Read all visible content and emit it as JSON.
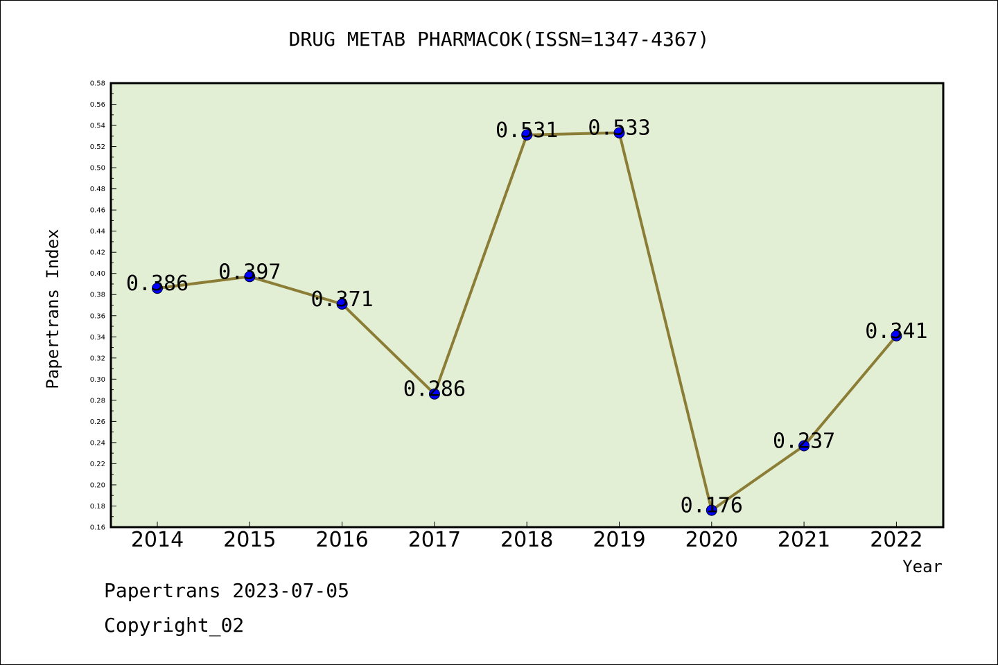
{
  "chart_data": {
    "type": "line",
    "title": "DRUG METAB PHARMACOK(ISSN=1347-4367)",
    "xlabel": "Year",
    "ylabel": "Papertrans Index",
    "categories": [
      "2014",
      "2015",
      "2016",
      "2017",
      "2018",
      "2019",
      "2020",
      "2021",
      "2022"
    ],
    "series": [
      {
        "values": [
          0.386,
          0.397,
          0.371,
          0.286,
          0.531,
          0.533,
          0.176,
          0.237,
          0.341
        ]
      }
    ],
    "data_labels": [
      "0.386",
      "0.397",
      "0.371",
      "0.286",
      "0.531",
      "0.533",
      "0.176",
      "0.237",
      "0.341"
    ],
    "ylim": [
      0.16,
      0.58
    ],
    "yticks": [
      "0.16",
      "0.18",
      "0.20",
      "0.22",
      "0.24",
      "0.26",
      "0.28",
      "0.30",
      "0.32",
      "0.34",
      "0.36",
      "0.38",
      "0.40",
      "0.42",
      "0.44",
      "0.46",
      "0.48",
      "0.50",
      "0.52",
      "0.54",
      "0.56",
      "0.58"
    ],
    "grid": false,
    "colors": {
      "plot_background": "#e2efd5",
      "line": "#8b7d35",
      "marker": "#0000ff"
    }
  },
  "footer": {
    "line1": "Papertrans 2023-07-05",
    "line2": "Copyright_02"
  }
}
